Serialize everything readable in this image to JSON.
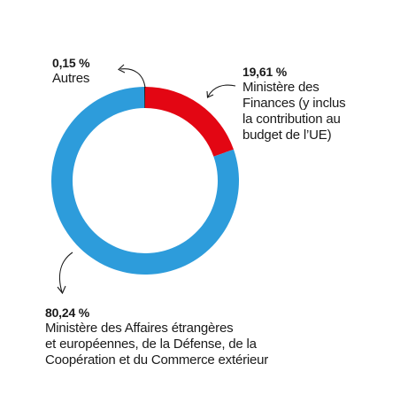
{
  "chart_data": {
    "type": "pie",
    "donut": true,
    "slices": [
      {
        "value_label": "19,61 %",
        "value": 19.61,
        "description": "Ministère des\nFinances (y inclus\nla contribution au\nbudget de l’UE)",
        "color": "#e30613"
      },
      {
        "value_label": "80,24 %",
        "value": 80.24,
        "description": "Ministère des Affaires étrangères\net européennes, de la Défense, de la\nCoopération et du Commerce extérieur",
        "color": "#2d9cdb"
      },
      {
        "value_label": "0,15 %",
        "value": 0.15,
        "description": "Autres",
        "color": "#1a1a1a"
      }
    ],
    "start_angle_deg": 0,
    "direction": "clockwise"
  }
}
